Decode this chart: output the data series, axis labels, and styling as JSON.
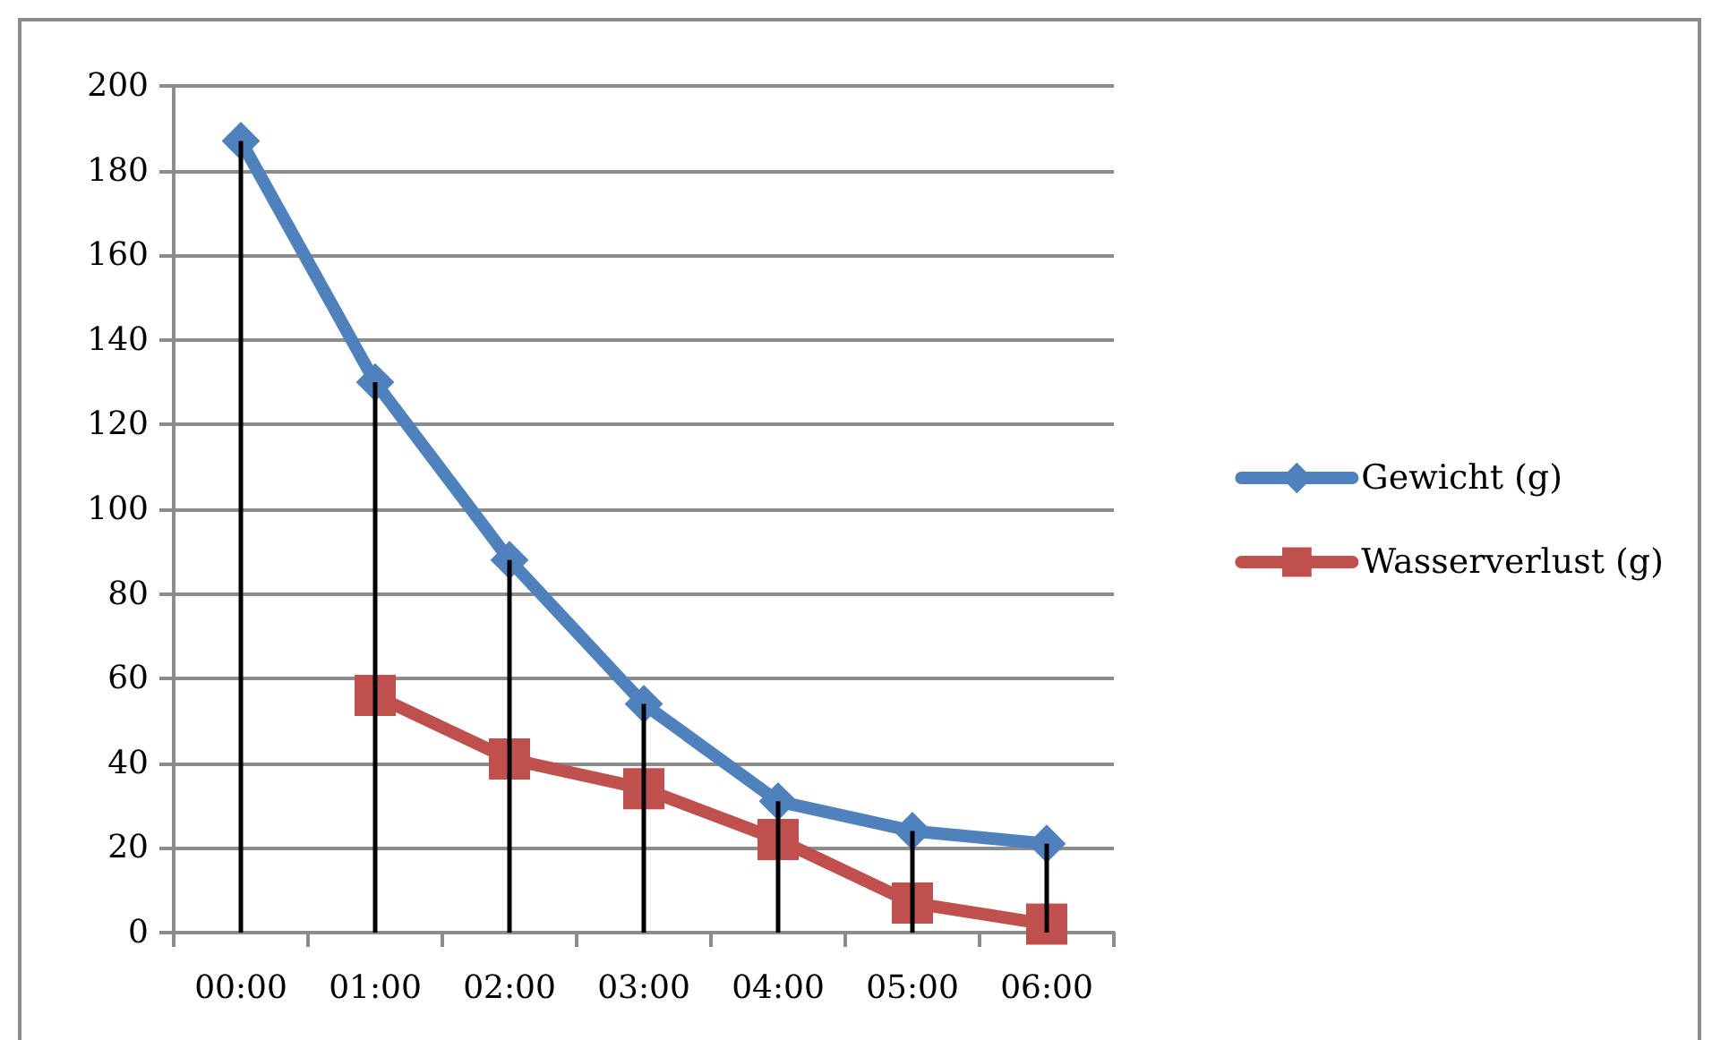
{
  "chart_data": {
    "type": "line",
    "categories": [
      "00:00",
      "01:00",
      "02:00",
      "03:00",
      "04:00",
      "05:00",
      "06:00"
    ],
    "series": [
      {
        "name": "Gewicht (g)",
        "color": "#4f81bd",
        "marker": "diamond",
        "values": [
          187,
          130,
          88,
          54,
          31,
          24,
          21
        ],
        "errors": [
          [
            0,
            187
          ],
          [
            0,
            130
          ],
          [
            0,
            88
          ],
          [
            0,
            54
          ],
          [
            0,
            31
          ],
          [
            0,
            24
          ],
          [
            0,
            21
          ]
        ]
      },
      {
        "name": "Wasserverlust (g)",
        "color": "#c0504d",
        "marker": "square",
        "values": [
          null,
          56,
          41,
          34,
          22,
          7,
          2
        ]
      }
    ],
    "ylim": [
      0,
      200
    ],
    "yticks": [
      0,
      20,
      40,
      60,
      80,
      100,
      120,
      140,
      160,
      180,
      200
    ],
    "grid": "y",
    "legend": "right",
    "line_style": "solid"
  }
}
